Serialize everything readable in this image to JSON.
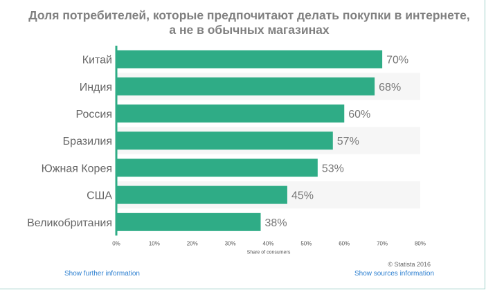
{
  "title": "Доля потребителей, которые предпочитают делать покупки в интернете, а не в обычных магазинах",
  "copyright": "© Statista 2016",
  "links": {
    "further": "Show further information",
    "sources": "Show sources information"
  },
  "colors": {
    "bar": "#2fac86",
    "axis": "#2fac86",
    "band": "#f6f6f6",
    "label": "#666666",
    "value": "#777777"
  },
  "chart_data": {
    "type": "bar",
    "orientation": "horizontal",
    "title": "Доля потребителей, которые предпочитают делать покупки в интернете, а не в обычных магазинах",
    "categories": [
      "Китай",
      "Индия",
      "Россия",
      "Бразилия",
      "Южная Корея",
      "США",
      "Великобритания"
    ],
    "values": [
      70,
      68,
      60,
      57,
      53,
      45,
      38
    ],
    "value_labels": [
      "70%",
      "68%",
      "60%",
      "57%",
      "53%",
      "45%",
      "38%"
    ],
    "xlabel": "Share of consumers",
    "ylabel": "",
    "xlim": [
      0,
      80
    ],
    "ticks": [
      0,
      10,
      20,
      30,
      40,
      50,
      60,
      70,
      80
    ],
    "tick_labels": [
      "0%",
      "10%",
      "20%",
      "30%",
      "40%",
      "50%",
      "60%",
      "70%",
      "80%"
    ]
  }
}
